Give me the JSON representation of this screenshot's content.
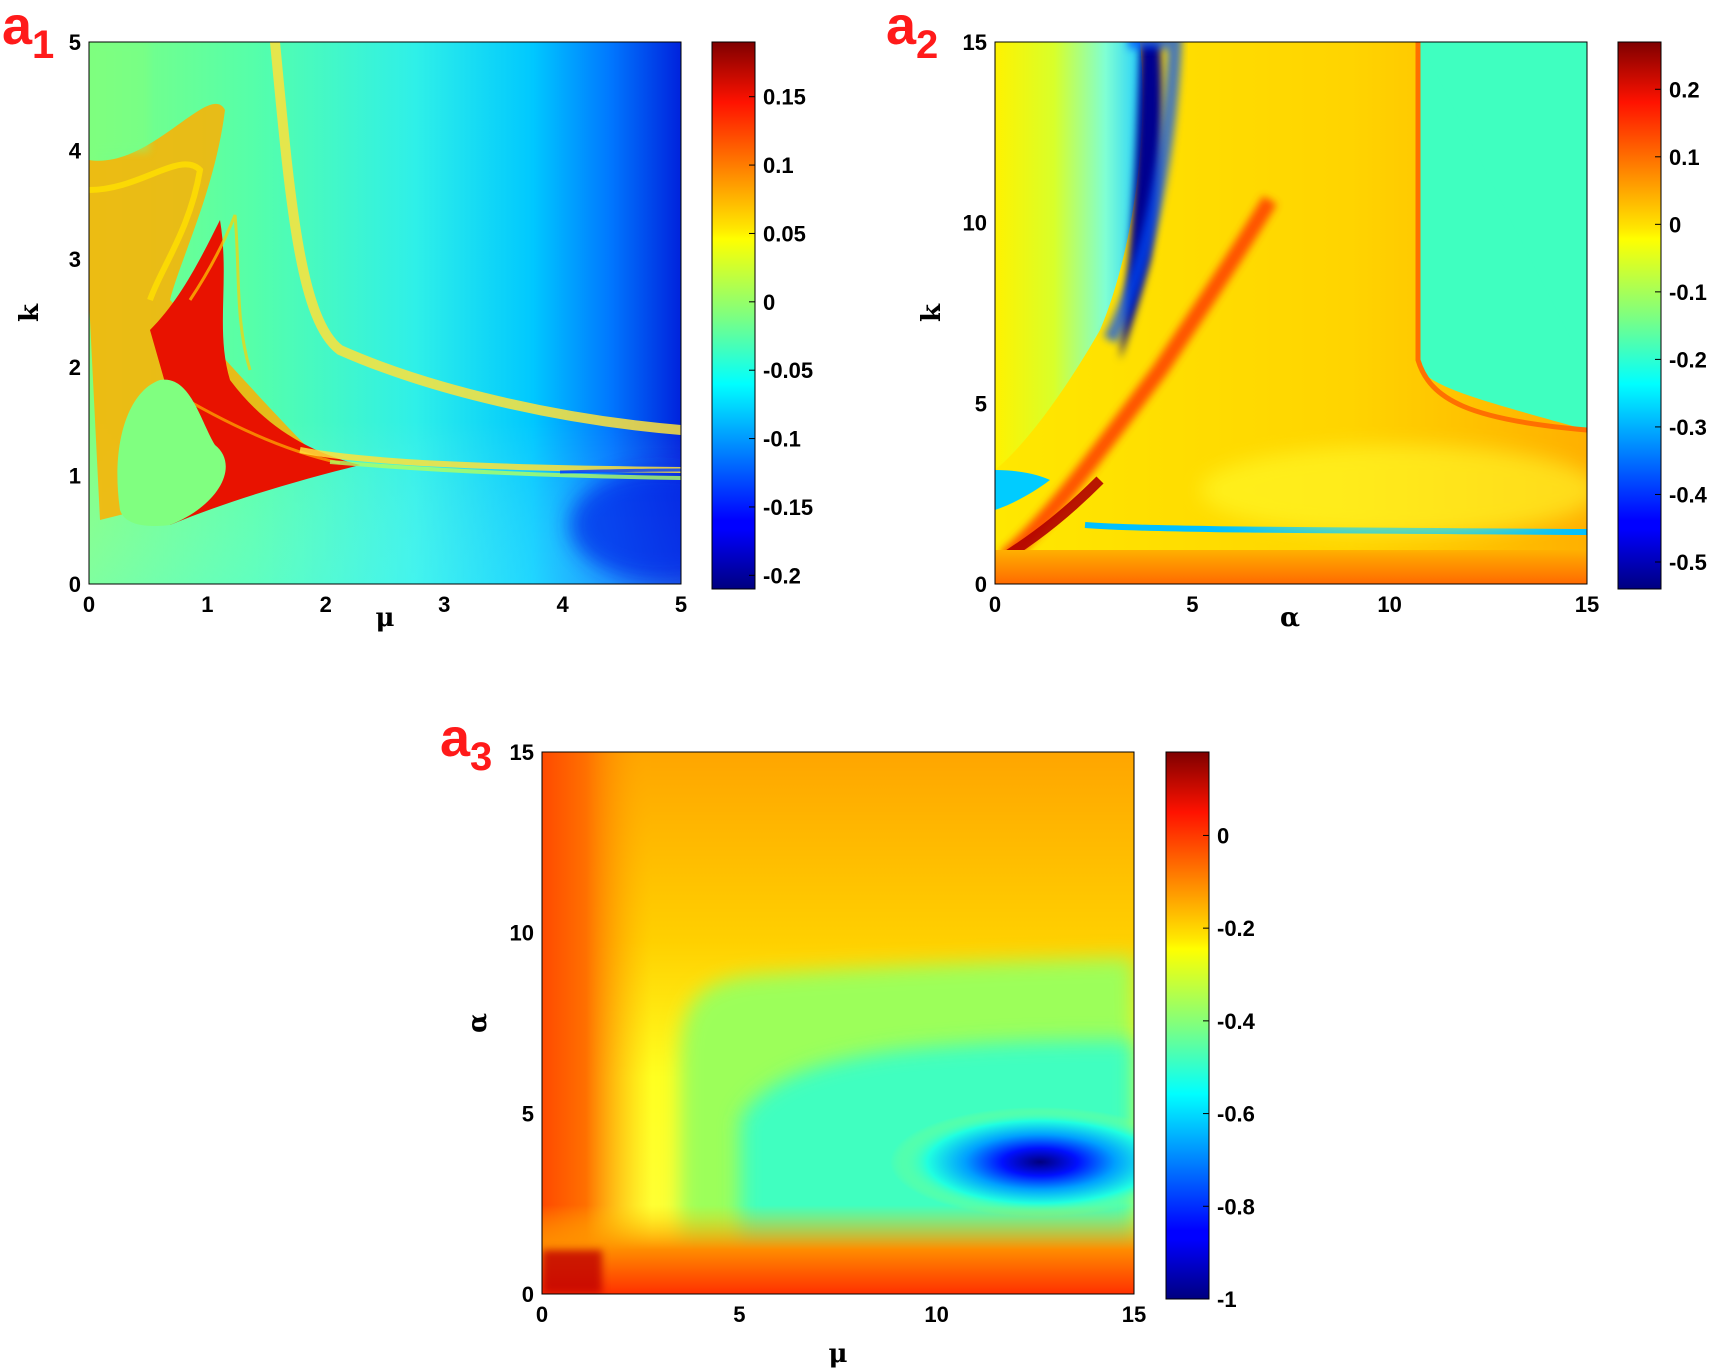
{
  "chart_data": [
    {
      "type": "heatmap",
      "panel_label": "a",
      "panel_subscript": "1",
      "xlabel": "μ",
      "ylabel": "k",
      "xlim": [
        0,
        5
      ],
      "ylim": [
        0,
        5
      ],
      "x_ticks": [
        0,
        1,
        2,
        3,
        4,
        5
      ],
      "y_ticks": [
        0,
        1,
        2,
        3,
        4,
        5
      ],
      "colorbar": {
        "range": [
          -0.21,
          0.19
        ],
        "ticks": [
          -0.2,
          -0.15,
          -0.1,
          -0.05,
          0,
          0.05,
          0.1,
          0.15
        ],
        "tick_labels": [
          "-0.2",
          "-0.15",
          "-0.1",
          "-0.05",
          "0",
          "0.05",
          "0.1",
          "0.15"
        ]
      },
      "colormap": "jet",
      "grid": false
    },
    {
      "type": "heatmap",
      "panel_label": "a",
      "panel_subscript": "2",
      "xlabel": "α",
      "ylabel": "k",
      "xlim": [
        0,
        15
      ],
      "ylim": [
        0,
        15
      ],
      "x_ticks": [
        0,
        5,
        10,
        15
      ],
      "y_ticks": [
        0,
        5,
        10,
        15
      ],
      "colorbar": {
        "range": [
          -0.54,
          0.27
        ],
        "ticks": [
          -0.5,
          -0.4,
          -0.3,
          -0.2,
          -0.1,
          0,
          0.1,
          0.2
        ],
        "tick_labels": [
          "-0.5",
          "-0.4",
          "-0.3",
          "-0.2",
          "-0.1",
          "0",
          "0.1",
          "0.2"
        ]
      },
      "colormap": "jet",
      "grid": false
    },
    {
      "type": "heatmap",
      "panel_label": "a",
      "panel_subscript": "3",
      "xlabel": "μ",
      "ylabel": "α",
      "xlim": [
        0,
        15
      ],
      "ylim": [
        0,
        15
      ],
      "x_ticks": [
        0,
        5,
        10,
        15
      ],
      "y_ticks": [
        0,
        5,
        10,
        15
      ],
      "colorbar": {
        "range": [
          -1.0,
          0.18
        ],
        "ticks": [
          -1,
          -0.8,
          -0.6,
          -0.4,
          -0.2,
          0
        ],
        "tick_labels": [
          "-1",
          "-0.8",
          "-0.6",
          "-0.4",
          "-0.2",
          "0"
        ]
      },
      "colormap": "jet",
      "grid": false
    }
  ]
}
